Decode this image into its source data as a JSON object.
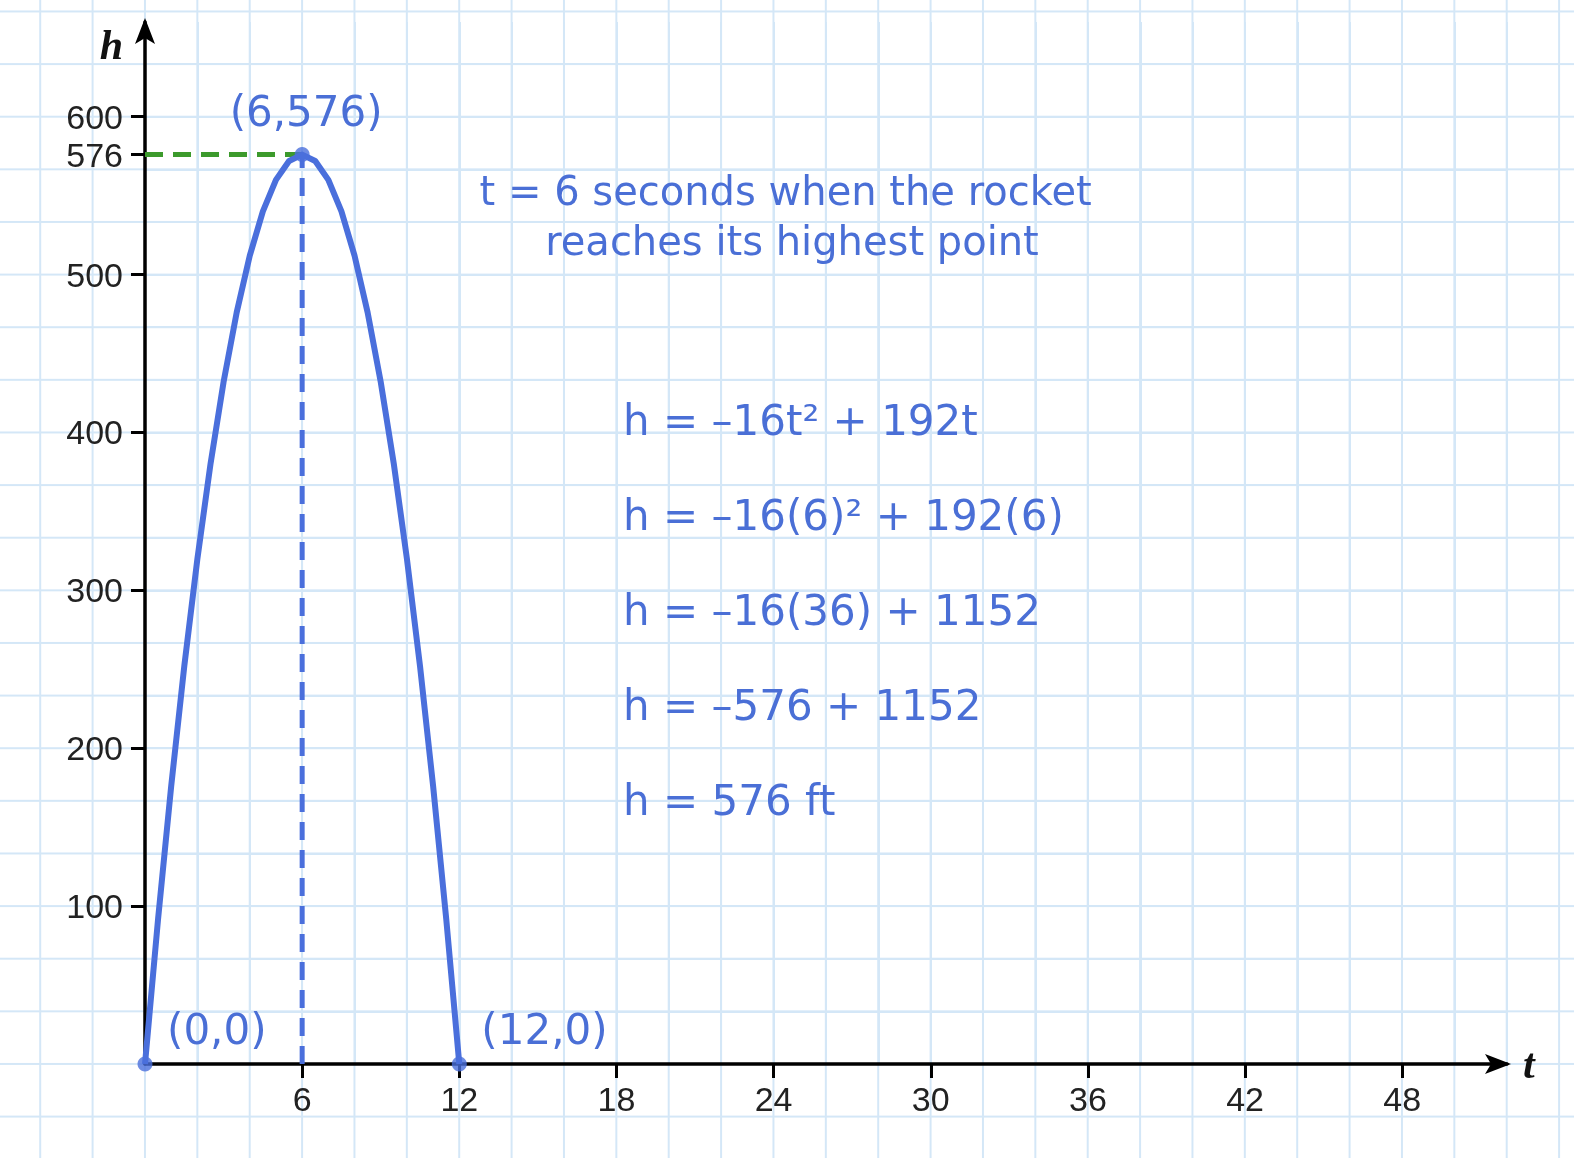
{
  "chart_data": {
    "type": "line",
    "xlabel": "t",
    "ylabel": "h",
    "xlim": [
      0,
      52
    ],
    "ylim": [
      0,
      660
    ],
    "xticks": [
      6,
      12,
      18,
      24,
      30,
      36,
      42,
      48
    ],
    "yticks": [
      100,
      200,
      300,
      400,
      500,
      576,
      600
    ],
    "grid": true,
    "series": [
      {
        "x": [
          6,
          6
        ],
        "values": [
          0,
          576
        ],
        "color": "#4a6fdc",
        "line_style": "dashed",
        "marker": "none"
      },
      {
        "x": [
          0,
          6
        ],
        "values": [
          576,
          576
        ],
        "color": "#3c9a2c",
        "line_style": "dashed",
        "marker": "none"
      },
      {
        "x": [
          0,
          0.5,
          1,
          1.5,
          2,
          2.5,
          3,
          3.5,
          4,
          4.5,
          5,
          5.5,
          6,
          6.5,
          7,
          7.5,
          8,
          8.5,
          9,
          9.5,
          10,
          10.5,
          11,
          11.5,
          12
        ],
        "values": [
          0,
          92,
          176,
          252,
          320,
          380,
          432,
          476,
          512,
          540,
          560,
          572,
          576,
          572,
          560,
          540,
          512,
          476,
          432,
          380,
          320,
          252,
          176,
          92,
          0
        ],
        "color": "#4a6fdc",
        "line_style": "solid",
        "marker": "none"
      },
      {
        "type": "scatter",
        "x": [
          0,
          6,
          12
        ],
        "values": [
          0,
          576,
          0
        ],
        "color": "#4a6fdc",
        "marker": "circle"
      }
    ],
    "annotations": [
      {
        "text": "(6,576)",
        "x": 6,
        "y": 576
      },
      {
        "text": "(0,0)",
        "x": 0,
        "y": 0
      },
      {
        "text": "(12,0)",
        "x": 12,
        "y": 0
      },
      "t = 6 seconds when the rocket reaches its highest point",
      "h = –16t² + 192t",
      "h = –16(6)² + 192(6)",
      "h = –16(36) + 1152",
      "h = –576 + 1152",
      "h = 576 ft"
    ]
  }
}
